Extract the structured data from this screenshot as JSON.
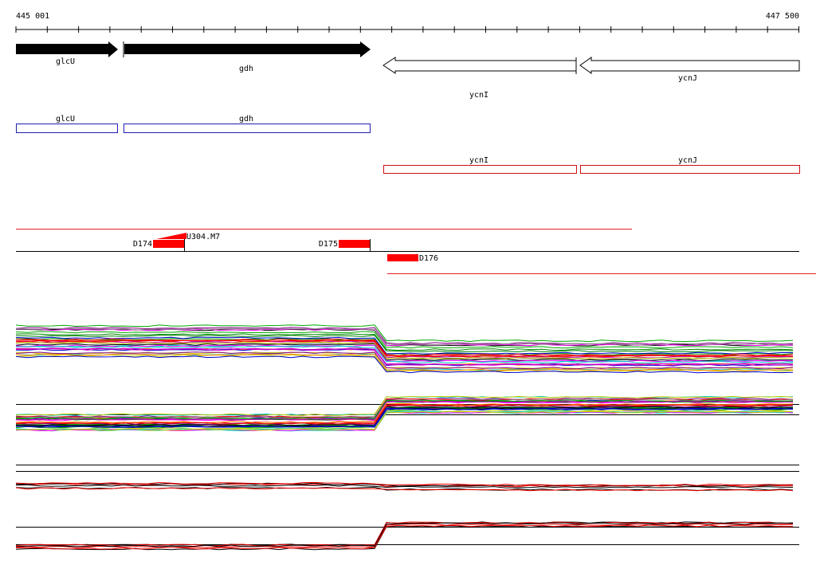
{
  "ruler": {
    "start": "445 001",
    "end": "447 500"
  },
  "genes": [
    {
      "label": "glcU"
    },
    {
      "label": "gdh"
    },
    {
      "label": "ycnI"
    },
    {
      "label": "ycnJ"
    }
  ],
  "cds": [
    {
      "label": "glcU"
    },
    {
      "label": "gdh"
    },
    {
      "label": "ycnI"
    },
    {
      "label": "ycnJ"
    }
  ],
  "segments": [
    {
      "label": "D174"
    },
    {
      "label": "U304.M7"
    },
    {
      "label": "D175"
    },
    {
      "label": "D176"
    }
  ]
}
